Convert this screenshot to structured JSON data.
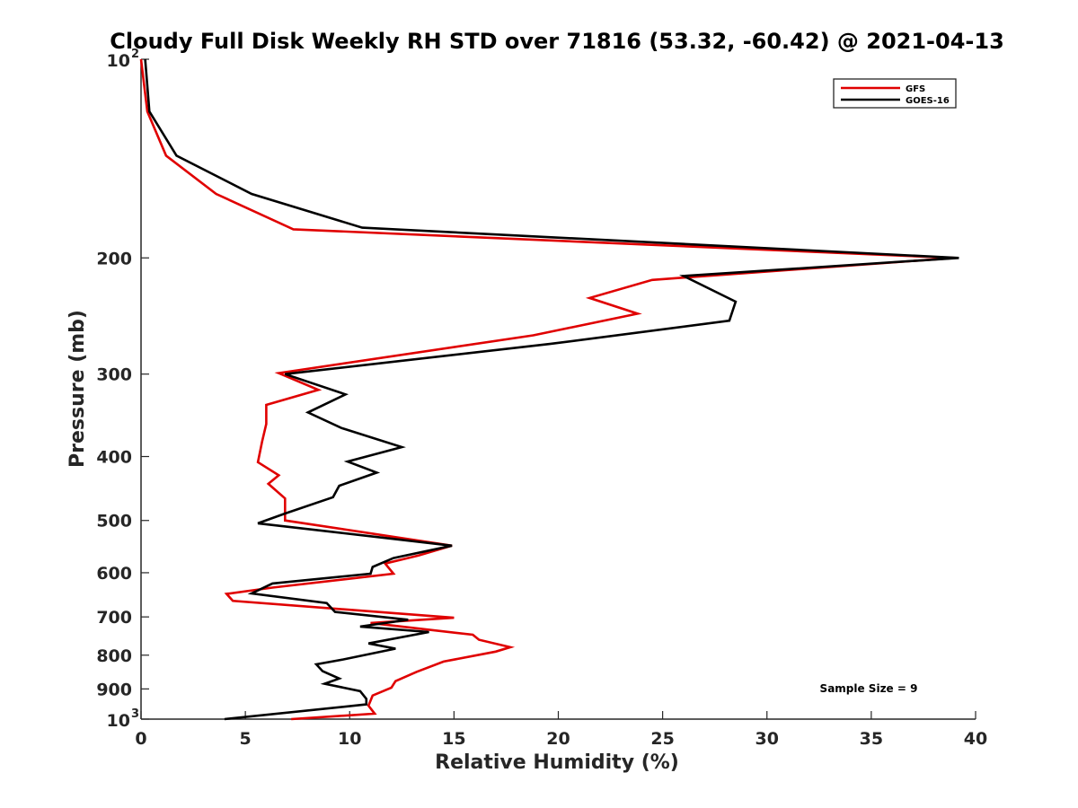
{
  "chart_data": {
    "type": "line",
    "title": "Cloudy Full Disk Weekly RH STD over 71816 (53.32, -60.42) @ 2021-04-13",
    "xlabel": "Relative Humidity (%)",
    "ylabel": "Pressure (mb)",
    "xlim": [
      0,
      40
    ],
    "ylim": [
      100,
      1000
    ],
    "y_scale": "log",
    "y_reversed": true,
    "xticks": [
      0,
      5,
      10,
      15,
      20,
      25,
      30,
      35,
      40
    ],
    "yticks": [
      {
        "value": 100,
        "base": "10",
        "exp": "2"
      },
      {
        "value": 200,
        "label": "200"
      },
      {
        "value": 300,
        "label": "300"
      },
      {
        "value": 400,
        "label": "400"
      },
      {
        "value": 500,
        "label": "500"
      },
      {
        "value": 600,
        "label": "600"
      },
      {
        "value": 700,
        "label": "700"
      },
      {
        "value": 800,
        "label": "800"
      },
      {
        "value": 900,
        "label": "900"
      },
      {
        "value": 1000,
        "base": "10",
        "exp": "3"
      }
    ],
    "grid": false,
    "legend_position": "top-right",
    "annotation": "Sample Size = 9",
    "series": [
      {
        "name": "GFS",
        "color": "#e00000",
        "points": [
          [
            0.0,
            100
          ],
          [
            0.3,
            120
          ],
          [
            1.2,
            140
          ],
          [
            3.6,
            160
          ],
          [
            7.3,
            181
          ],
          [
            39.0,
            200
          ],
          [
            24.5,
            216
          ],
          [
            21.5,
            230
          ],
          [
            23.8,
            243
          ],
          [
            18.8,
            262
          ],
          [
            6.6,
            299
          ],
          [
            8.5,
            317
          ],
          [
            6.0,
            334
          ],
          [
            6.0,
            357
          ],
          [
            5.8,
            380
          ],
          [
            5.6,
            408
          ],
          [
            6.6,
            427
          ],
          [
            6.1,
            440
          ],
          [
            6.9,
            463
          ],
          [
            6.9,
            500
          ],
          [
            14.9,
            546
          ],
          [
            13.3,
            565
          ],
          [
            11.7,
            581
          ],
          [
            12.1,
            602
          ],
          [
            6.3,
            632
          ],
          [
            4.1,
            646
          ],
          [
            4.4,
            662
          ],
          [
            15.0,
            702
          ],
          [
            11.0,
            715
          ],
          [
            15.9,
            745
          ],
          [
            16.2,
            758
          ],
          [
            17.7,
            778
          ],
          [
            17.0,
            790
          ],
          [
            14.5,
            818
          ],
          [
            13.2,
            848
          ],
          [
            12.2,
            876
          ],
          [
            12.0,
            896
          ],
          [
            11.1,
            921
          ],
          [
            10.9,
            954
          ],
          [
            11.2,
            981
          ],
          [
            7.2,
            1000
          ]
        ]
      },
      {
        "name": "GOES-16",
        "color": "#000000",
        "points": [
          [
            0.2,
            100
          ],
          [
            0.4,
            120
          ],
          [
            1.7,
            140
          ],
          [
            5.3,
            160
          ],
          [
            10.6,
            180
          ],
          [
            39.2,
            200
          ],
          [
            26.0,
            213
          ],
          [
            28.5,
            233
          ],
          [
            28.2,
            249
          ],
          [
            19.6,
            270
          ],
          [
            6.9,
            300
          ],
          [
            9.8,
            322
          ],
          [
            8.0,
            343
          ],
          [
            9.6,
            362
          ],
          [
            12.5,
            387
          ],
          [
            9.9,
            407
          ],
          [
            11.3,
            423
          ],
          [
            9.5,
            443
          ],
          [
            9.2,
            461
          ],
          [
            6.9,
            488
          ],
          [
            5.6,
            505
          ],
          [
            14.9,
            546
          ],
          [
            12.1,
            570
          ],
          [
            11.1,
            588
          ],
          [
            11.0,
            602
          ],
          [
            6.3,
            623
          ],
          [
            5.3,
            645
          ],
          [
            8.9,
            667
          ],
          [
            9.3,
            688
          ],
          [
            12.8,
            707
          ],
          [
            10.5,
            724
          ],
          [
            13.8,
            738
          ],
          [
            10.9,
            768
          ],
          [
            12.2,
            782
          ],
          [
            9.7,
            812
          ],
          [
            8.4,
            826
          ],
          [
            8.7,
            846
          ],
          [
            9.5,
            868
          ],
          [
            8.8,
            884
          ],
          [
            10.5,
            907
          ],
          [
            10.8,
            932
          ],
          [
            10.8,
            950
          ],
          [
            4.0,
            1000
          ]
        ]
      }
    ]
  }
}
